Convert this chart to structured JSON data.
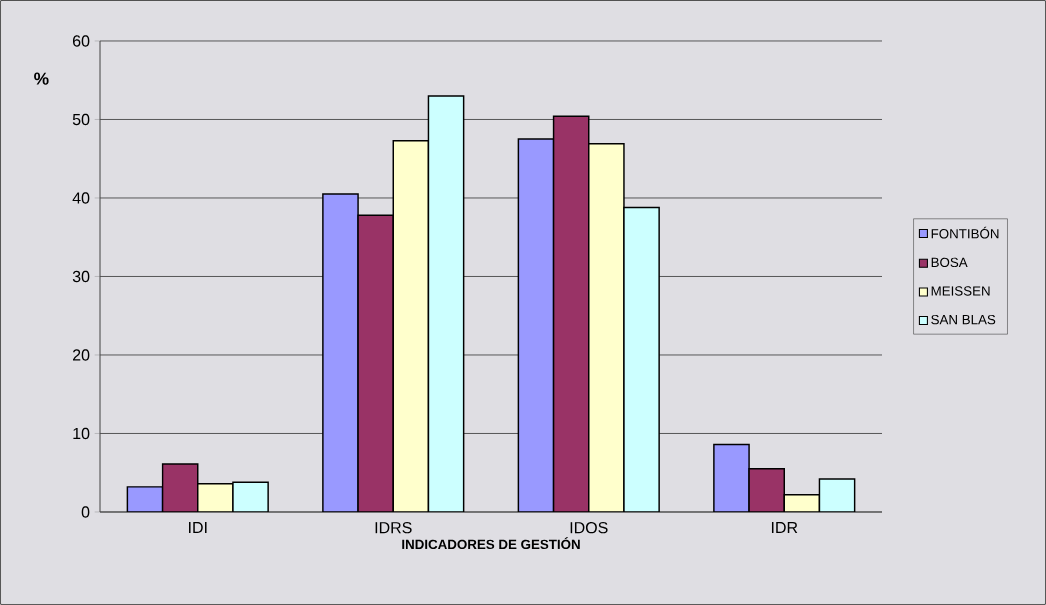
{
  "chart_data": {
    "type": "bar",
    "xlabel": "INDICADORES DE GESTIÓN",
    "ylabel": "%",
    "categories": [
      "IDI",
      "IDRS",
      "IDOS",
      "IDR"
    ],
    "series": [
      {
        "name": "FONTIBÓN",
        "color": "#9999ff",
        "values": [
          3.2,
          40.5,
          47.5,
          8.6
        ]
      },
      {
        "name": "BOSA",
        "color": "#993366",
        "values": [
          6.1,
          37.8,
          50.4,
          5.5
        ]
      },
      {
        "name": "MEISSEN",
        "color": "#ffffcc",
        "values": [
          3.6,
          47.3,
          46.9,
          2.2
        ]
      },
      {
        "name": "SAN BLAS",
        "color": "#ccffff",
        "values": [
          3.8,
          53.0,
          38.8,
          4.2
        ]
      }
    ],
    "ylim": [
      0,
      60
    ],
    "yticks": [
      0,
      10,
      20,
      30,
      40,
      50,
      60
    ],
    "grid": "y",
    "legend": "right"
  }
}
